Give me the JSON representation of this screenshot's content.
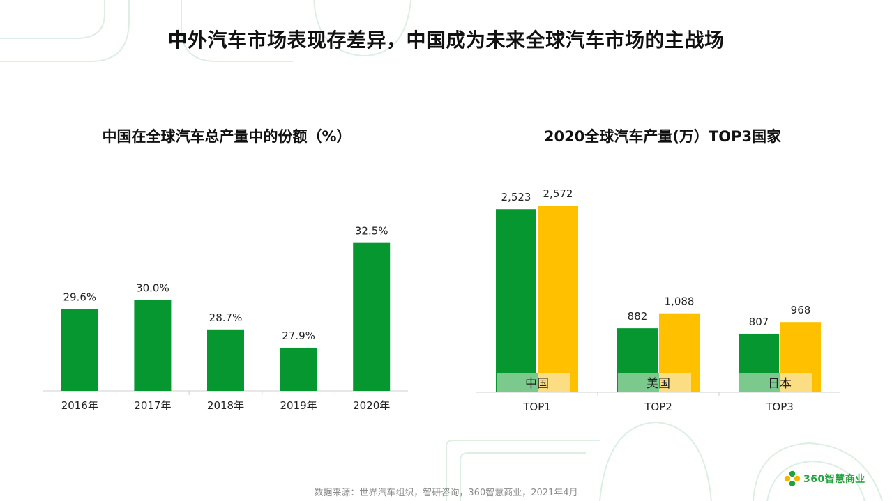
{
  "title": "中外汽车市场表现存差异，中国成为未来全球汽车市场的主战场",
  "source": "数据来源：世界汽车组织，智研咨询，360智慧商业，2021年4月",
  "logo": {
    "text": "360智慧商业",
    "icon": "flower-logo-icon"
  },
  "colors": {
    "green": "#079731",
    "yellow": "#ffc000",
    "label_green": "#7cc98e",
    "label_yellow": "#fbdd84",
    "deco": "#dcefe2"
  },
  "chart_data": [
    {
      "type": "bar",
      "title": "中国在全球汽车总产量中的份额（%）",
      "categories": [
        "2016年",
        "2017年",
        "2018年",
        "2019年",
        "2020年"
      ],
      "values": [
        29.6,
        30.0,
        28.7,
        27.9,
        32.5
      ],
      "value_labels": [
        "29.6%",
        "30.0%",
        "28.7%",
        "27.9%",
        "32.5%"
      ],
      "color": "#079731",
      "ylim": [
        26,
        33.5
      ],
      "grid": false
    },
    {
      "type": "bar",
      "title": "2020全球汽车产量(万）TOP3国家",
      "categories": [
        "TOP1",
        "TOP2",
        "TOP3"
      ],
      "bar_labels": [
        "中国",
        "美国",
        "日本"
      ],
      "series": [
        {
          "values": [
            2523,
            882,
            807
          ],
          "value_labels": [
            "2,523",
            "882",
            "807"
          ],
          "color": "#079731"
        },
        {
          "values": [
            2572,
            1088,
            968
          ],
          "value_labels": [
            "2,572",
            "1,088",
            "968"
          ],
          "color": "#ffc000"
        }
      ],
      "ylim": [
        0,
        2650
      ],
      "grid": false
    }
  ]
}
